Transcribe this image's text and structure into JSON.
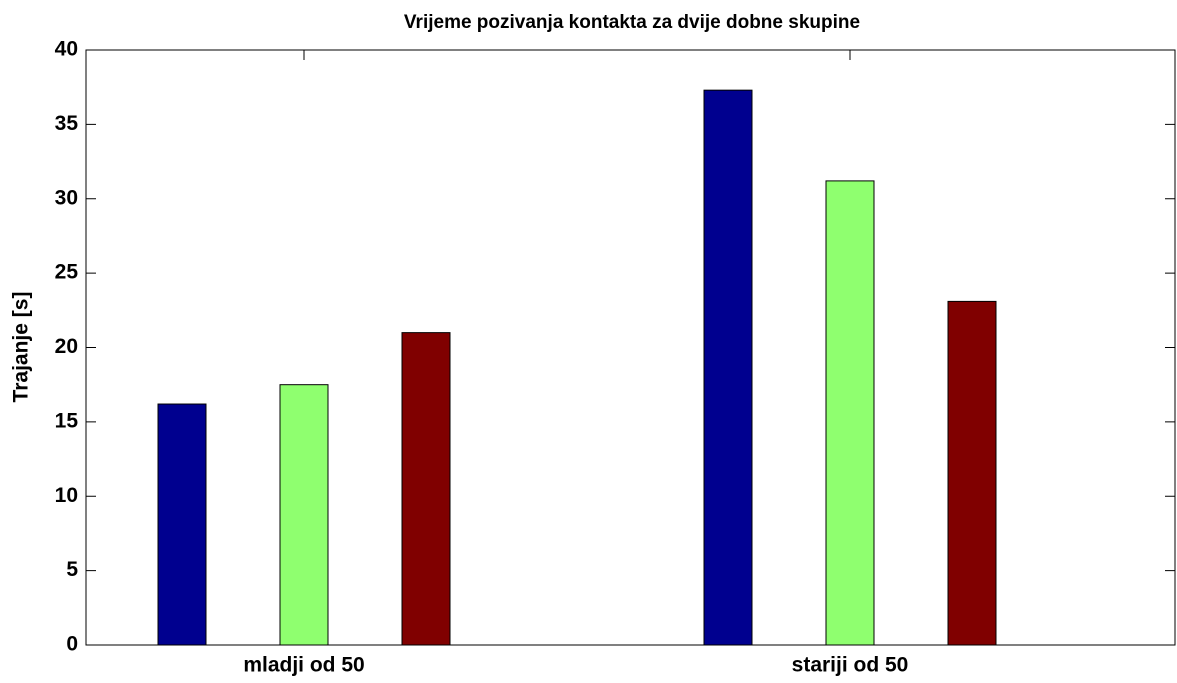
{
  "chart_data": {
    "type": "bar",
    "title": "Vrijeme pozivanja kontakta za dvije dobne skupine",
    "ylabel": "Trajanje [s]",
    "categories": [
      "mladji od 50",
      "stariji od 50"
    ],
    "series": [
      {
        "color": "#00008f",
        "values": [
          16.2,
          37.3
        ]
      },
      {
        "color": "#8fff6f",
        "values": [
          17.5,
          31.2
        ]
      },
      {
        "color": "#800000",
        "values": [
          21.0,
          23.1
        ]
      }
    ],
    "ylim": [
      0,
      40
    ],
    "yticks": [
      0,
      5,
      10,
      15,
      20,
      25,
      30,
      35,
      40
    ]
  }
}
